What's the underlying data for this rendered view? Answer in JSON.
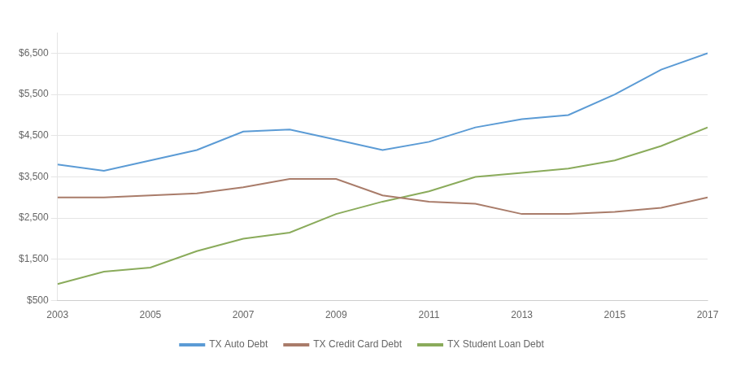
{
  "chart_data": {
    "type": "line",
    "x": [
      2003,
      2004,
      2005,
      2006,
      2007,
      2008,
      2009,
      2010,
      2011,
      2012,
      2013,
      2014,
      2015,
      2016,
      2017
    ],
    "series": [
      {
        "name": "TX Auto Debt",
        "color": "#5B9BD5",
        "values": [
          3800,
          3650,
          3900,
          4150,
          4600,
          4650,
          4400,
          4150,
          4350,
          4700,
          4900,
          5000,
          5500,
          6100,
          6500
        ]
      },
      {
        "name": "TX Credit Card Debt",
        "color": "#A97C6A",
        "values": [
          3000,
          3000,
          3050,
          3100,
          3250,
          3450,
          3450,
          3050,
          2900,
          2850,
          2600,
          2600,
          2650,
          2750,
          3000
        ]
      },
      {
        "name": "TX Student Loan Debt",
        "color": "#8AAB5B",
        "values": [
          900,
          1200,
          1300,
          1700,
          2000,
          2150,
          2600,
          2900,
          3150,
          3500,
          3600,
          3700,
          3900,
          4250,
          4700
        ]
      }
    ],
    "xlim": [
      2003,
      2017
    ],
    "xticks": [
      2003,
      2005,
      2007,
      2009,
      2011,
      2013,
      2015,
      2017
    ],
    "ylim": [
      500,
      7000
    ],
    "yticks": [
      {
        "value": 500,
        "label": "$500"
      },
      {
        "value": 1500,
        "label": "$1,500"
      },
      {
        "value": 2500,
        "label": "$2,500"
      },
      {
        "value": 3500,
        "label": "$3,500"
      },
      {
        "value": 4500,
        "label": "$4,500"
      },
      {
        "value": 5500,
        "label": "$5,500"
      },
      {
        "value": 6500,
        "label": "$6,500"
      }
    ],
    "grid": "y",
    "legend": "bottom"
  }
}
